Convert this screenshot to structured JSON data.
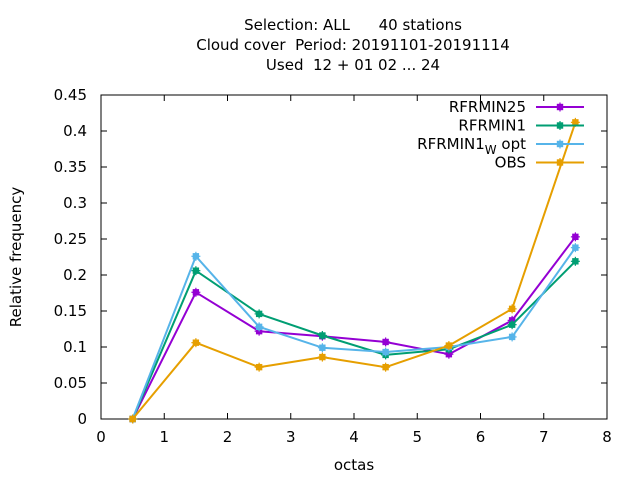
{
  "chart_data": {
    "type": "line",
    "title_lines": [
      "Selection: ALL      40 stations",
      "Cloud cover  Period: 20191101-20191114",
      "Used  12 + 01 02 ... 24"
    ],
    "xlabel": "octas",
    "ylabel": "Relative frequency",
    "xlim": [
      0,
      8
    ],
    "ylim": [
      0,
      0.45
    ],
    "xticks": [
      "0",
      "1",
      "2",
      "3",
      "4",
      "5",
      "6",
      "7",
      "8"
    ],
    "yticks": [
      "0",
      "0.05",
      "0.1",
      "0.15",
      "0.2",
      "0.25",
      "0.3",
      "0.35",
      "0.4",
      "0.45"
    ],
    "grid": false,
    "legend_position": "top-right",
    "x": [
      0.5,
      1.5,
      2.5,
      3.5,
      4.5,
      5.5,
      6.5,
      7.5
    ],
    "series": [
      {
        "name": "RFRMIN25",
        "color": "#9400d3",
        "values": [
          0.0,
          0.176,
          0.122,
          0.115,
          0.107,
          0.09,
          0.137,
          0.253
        ]
      },
      {
        "name": "RFRMIN1",
        "color": "#009e73",
        "values": [
          0.0,
          0.206,
          0.146,
          0.116,
          0.089,
          0.097,
          0.131,
          0.219
        ]
      },
      {
        "name": "RFRMIN1",
        "subscript": "W",
        "suffix": " opt",
        "color": "#56b4e9",
        "values": [
          0.0,
          0.226,
          0.128,
          0.099,
          0.093,
          0.1,
          0.114,
          0.238
        ]
      },
      {
        "name": "OBS",
        "color": "#e69f00",
        "values": [
          0.0,
          0.106,
          0.072,
          0.086,
          0.072,
          0.102,
          0.153,
          0.412
        ]
      }
    ]
  }
}
